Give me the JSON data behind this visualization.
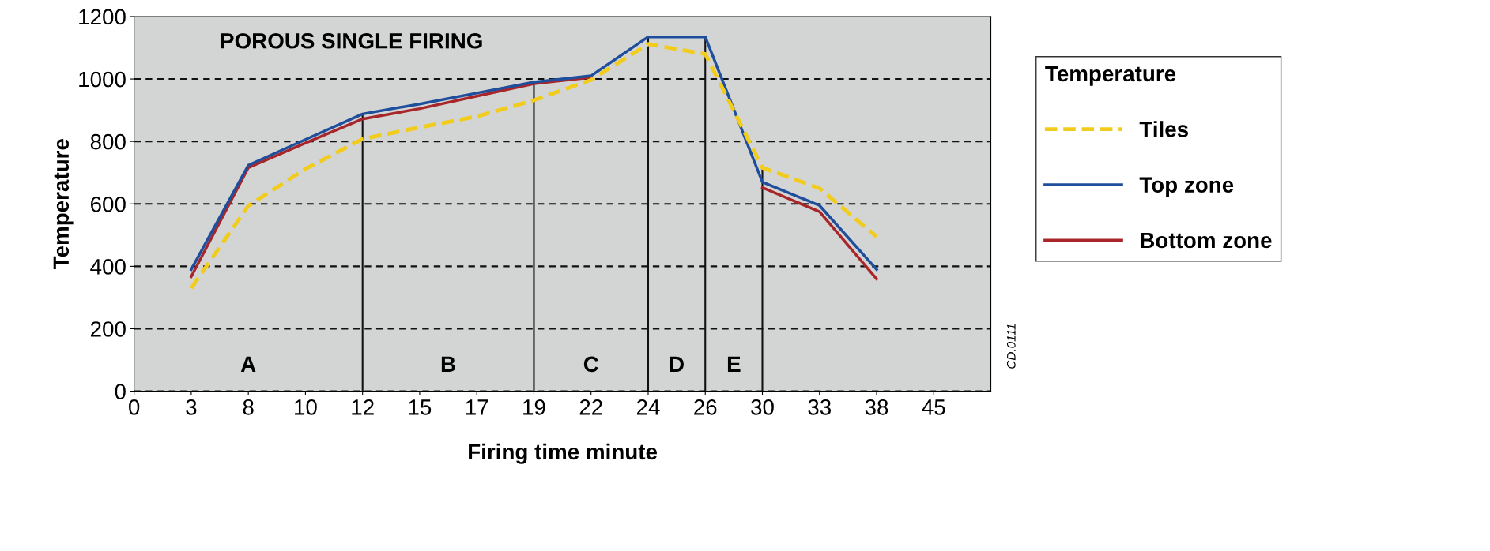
{
  "chart_data": {
    "type": "line",
    "title": "POROUS SINGLE FIRING",
    "xlabel": "Firing time minute",
    "ylabel": "Temperature",
    "legend_title": "Temperature",
    "categories": [
      "0",
      "3",
      "8",
      "10",
      "12",
      "15",
      "17",
      "19",
      "22",
      "24",
      "26",
      "30",
      "33",
      "38",
      "45"
    ],
    "ylim": [
      0,
      1200
    ],
    "yticks": [
      0,
      200,
      400,
      600,
      800,
      1000,
      1200
    ],
    "grid": "y",
    "legend": "right",
    "series": [
      {
        "name": "Tiles",
        "color": "#f2cc1c",
        "line_style": "dashed",
        "values": [
          null,
          330,
          594,
          712,
          808,
          845,
          880,
          932,
          997,
          1112,
          1080,
          716,
          650,
          495,
          null
        ]
      },
      {
        "name": "Top zone",
        "color": "#1f4e9c",
        "line_style": "solid",
        "values": [
          null,
          390,
          724,
          806,
          888,
          920,
          955,
          990,
          1010,
          1135,
          1135,
          670,
          595,
          390,
          null
        ]
      },
      {
        "name": "Bottom zone",
        "color": "#a8262a",
        "line_style": "solid",
        "values": [
          null,
          367,
          716,
          795,
          872,
          905,
          945,
          985,
          1005,
          null,
          null,
          652,
          575,
          360,
          null
        ]
      }
    ],
    "ref_lines": [
      {
        "axis": "x",
        "value": "12",
        "color": "#111111"
      },
      {
        "axis": "x",
        "value": "19",
        "color": "#111111"
      },
      {
        "axis": "x",
        "value": "24",
        "color": "#111111"
      },
      {
        "axis": "x",
        "value": "26",
        "color": "#111111"
      },
      {
        "axis": "x",
        "value": "30",
        "color": "#111111"
      }
    ],
    "annotations": [
      "A",
      "B",
      "C",
      "D",
      "E",
      "CD.0111"
    ]
  }
}
